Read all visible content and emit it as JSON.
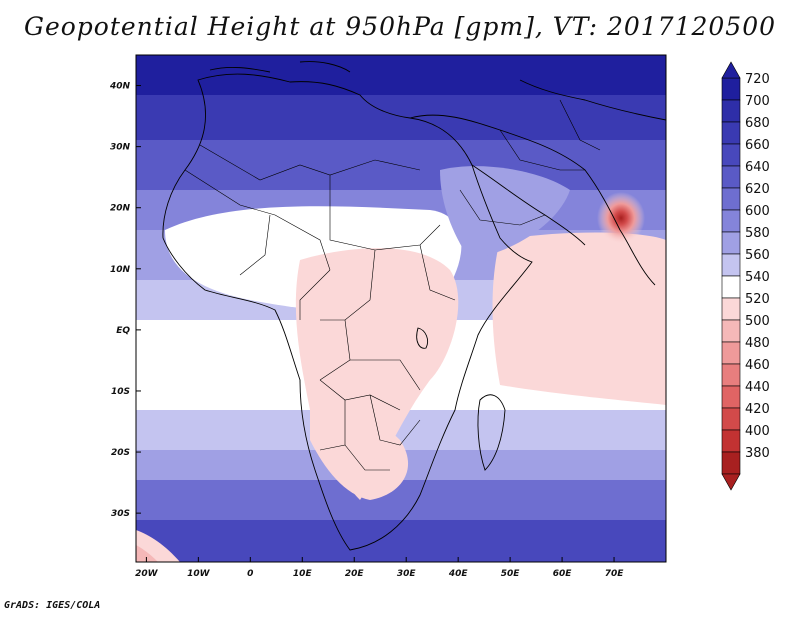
{
  "title": "Geopotential Height at 950hPa [gpm], VT: 2017120500",
  "credit": "GrADS: IGES/COLA",
  "axes": {
    "lon_labels": [
      "20W",
      "10W",
      "0",
      "10E",
      "20E",
      "30E",
      "40E",
      "50E",
      "60E",
      "70E"
    ],
    "lat_labels": [
      "40N",
      "30N",
      "20N",
      "10N",
      "EQ",
      "10S",
      "20S",
      "30S"
    ],
    "lon_range": [
      -22,
      80
    ],
    "lat_range": [
      -38,
      45
    ]
  },
  "colorbar": {
    "levels": [
      720,
      700,
      680,
      660,
      640,
      620,
      600,
      580,
      560,
      540,
      520,
      500,
      480,
      460,
      440,
      420,
      400,
      380
    ],
    "colors": {
      "720": "#1f1f9e",
      "700": "#2e2ea8",
      "680": "#3a3ab2",
      "660": "#4848bc",
      "640": "#5a5ac6",
      "620": "#6e6ed0",
      "600": "#8484da",
      "580": "#a0a0e4",
      "560": "#c4c4f0",
      "540": "#ffffff",
      "520": "#fbd8d8",
      "500": "#f5b8b8",
      "480": "#ef9a9a",
      "460": "#e87e7e",
      "440": "#e06464",
      "420": "#d24a4a",
      "400": "#c23232",
      "380": "#a82020"
    }
  }
}
